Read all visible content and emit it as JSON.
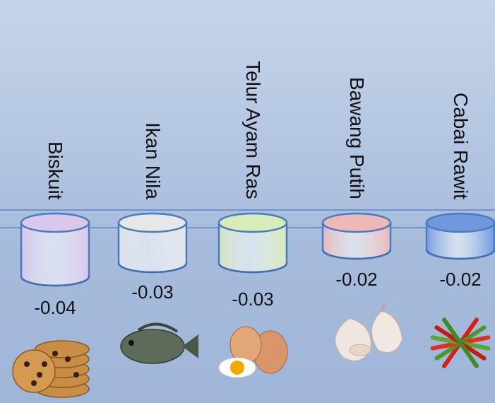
{
  "chart_data": {
    "type": "bar",
    "categories": [
      "Biskuit",
      "Ikan Nila",
      "Telur Ayam Ras",
      "Bawang Putih",
      "Cabai Rawit"
    ],
    "values": [
      -0.04,
      -0.03,
      -0.03,
      -0.02,
      -0.02
    ],
    "value_labels": [
      "-0.04",
      "-0.03",
      "-0.03",
      "-0.02",
      "-0.02"
    ],
    "bar_colors": [
      "#d9c8ec",
      "#e6e8e8",
      "#d8ecb8",
      "#efb8b8",
      "#6f98de"
    ],
    "icons": [
      "cookies-image",
      "tilapia-fish-image",
      "eggs-image",
      "garlic-image",
      "chili-pepper-image"
    ],
    "accent_line_color": "#5a86c6"
  }
}
